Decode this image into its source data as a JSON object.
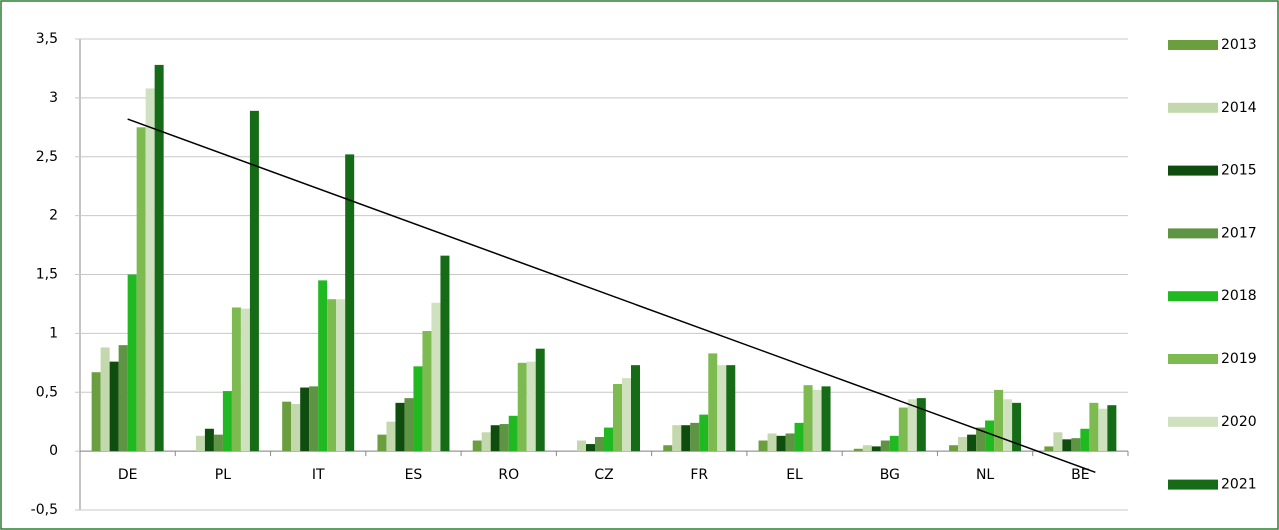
{
  "chart_data": {
    "type": "bar",
    "categories": [
      "DE",
      "PL",
      "IT",
      "ES",
      "RO",
      "CZ",
      "FR",
      "EL",
      "BG",
      "NL",
      "BE"
    ],
    "series": [
      {
        "name": "2013",
        "color": "#6a9e3f",
        "values": [
          0.67,
          0,
          0.42,
          0.14,
          0.09,
          0,
          0.05,
          0.09,
          0.02,
          0.05,
          0.04
        ]
      },
      {
        "name": "2014",
        "color": "#c3d8ac",
        "values": [
          0.88,
          0.13,
          0.4,
          0.25,
          0.16,
          0.09,
          0.22,
          0.15,
          0.05,
          0.12,
          0.16
        ]
      },
      {
        "name": "2015",
        "color": "#0f4d0f",
        "values": [
          0.76,
          0.19,
          0.54,
          0.41,
          0.22,
          0.06,
          0.22,
          0.13,
          0.04,
          0.14,
          0.1
        ]
      },
      {
        "name": "2017",
        "color": "#5e9444",
        "values": [
          0.9,
          0.14,
          0.55,
          0.45,
          0.23,
          0.12,
          0.24,
          0.15,
          0.09,
          0.2,
          0.11
        ]
      },
      {
        "name": "2018",
        "color": "#21b921",
        "values": [
          1.5,
          0.51,
          1.45,
          0.72,
          0.3,
          0.2,
          0.31,
          0.24,
          0.13,
          0.26,
          0.19
        ]
      },
      {
        "name": "2019",
        "color": "#7dbb50",
        "values": [
          2.75,
          1.22,
          1.29,
          1.02,
          0.75,
          0.57,
          0.83,
          0.56,
          0.37,
          0.52,
          0.41
        ]
      },
      {
        "name": "2020",
        "color": "#cfe1bf",
        "values": [
          3.08,
          1.21,
          1.29,
          1.26,
          0.76,
          0.62,
          0.73,
          0.52,
          0.44,
          0.44,
          0.36
        ]
      },
      {
        "name": "2021",
        "color": "#166b16",
        "values": [
          3.28,
          2.89,
          2.52,
          1.66,
          0.87,
          0.73,
          0.73,
          0.55,
          0.45,
          0.41,
          0.39
        ]
      }
    ],
    "trend_line": [
      2.82,
      -0.18
    ],
    "ylim": [
      -0.5,
      3.5
    ],
    "yticks": [
      {
        "value": -0.5,
        "label": "-0,5"
      },
      0,
      {
        "value": 0.5,
        "label": "0,5"
      },
      1,
      {
        "value": 1.5,
        "label": "1,5"
      },
      2,
      {
        "value": 2.5,
        "label": "2,5"
      },
      3,
      {
        "value": 3.5,
        "label": "3,5"
      }
    ],
    "grid": true,
    "legend": "right"
  }
}
